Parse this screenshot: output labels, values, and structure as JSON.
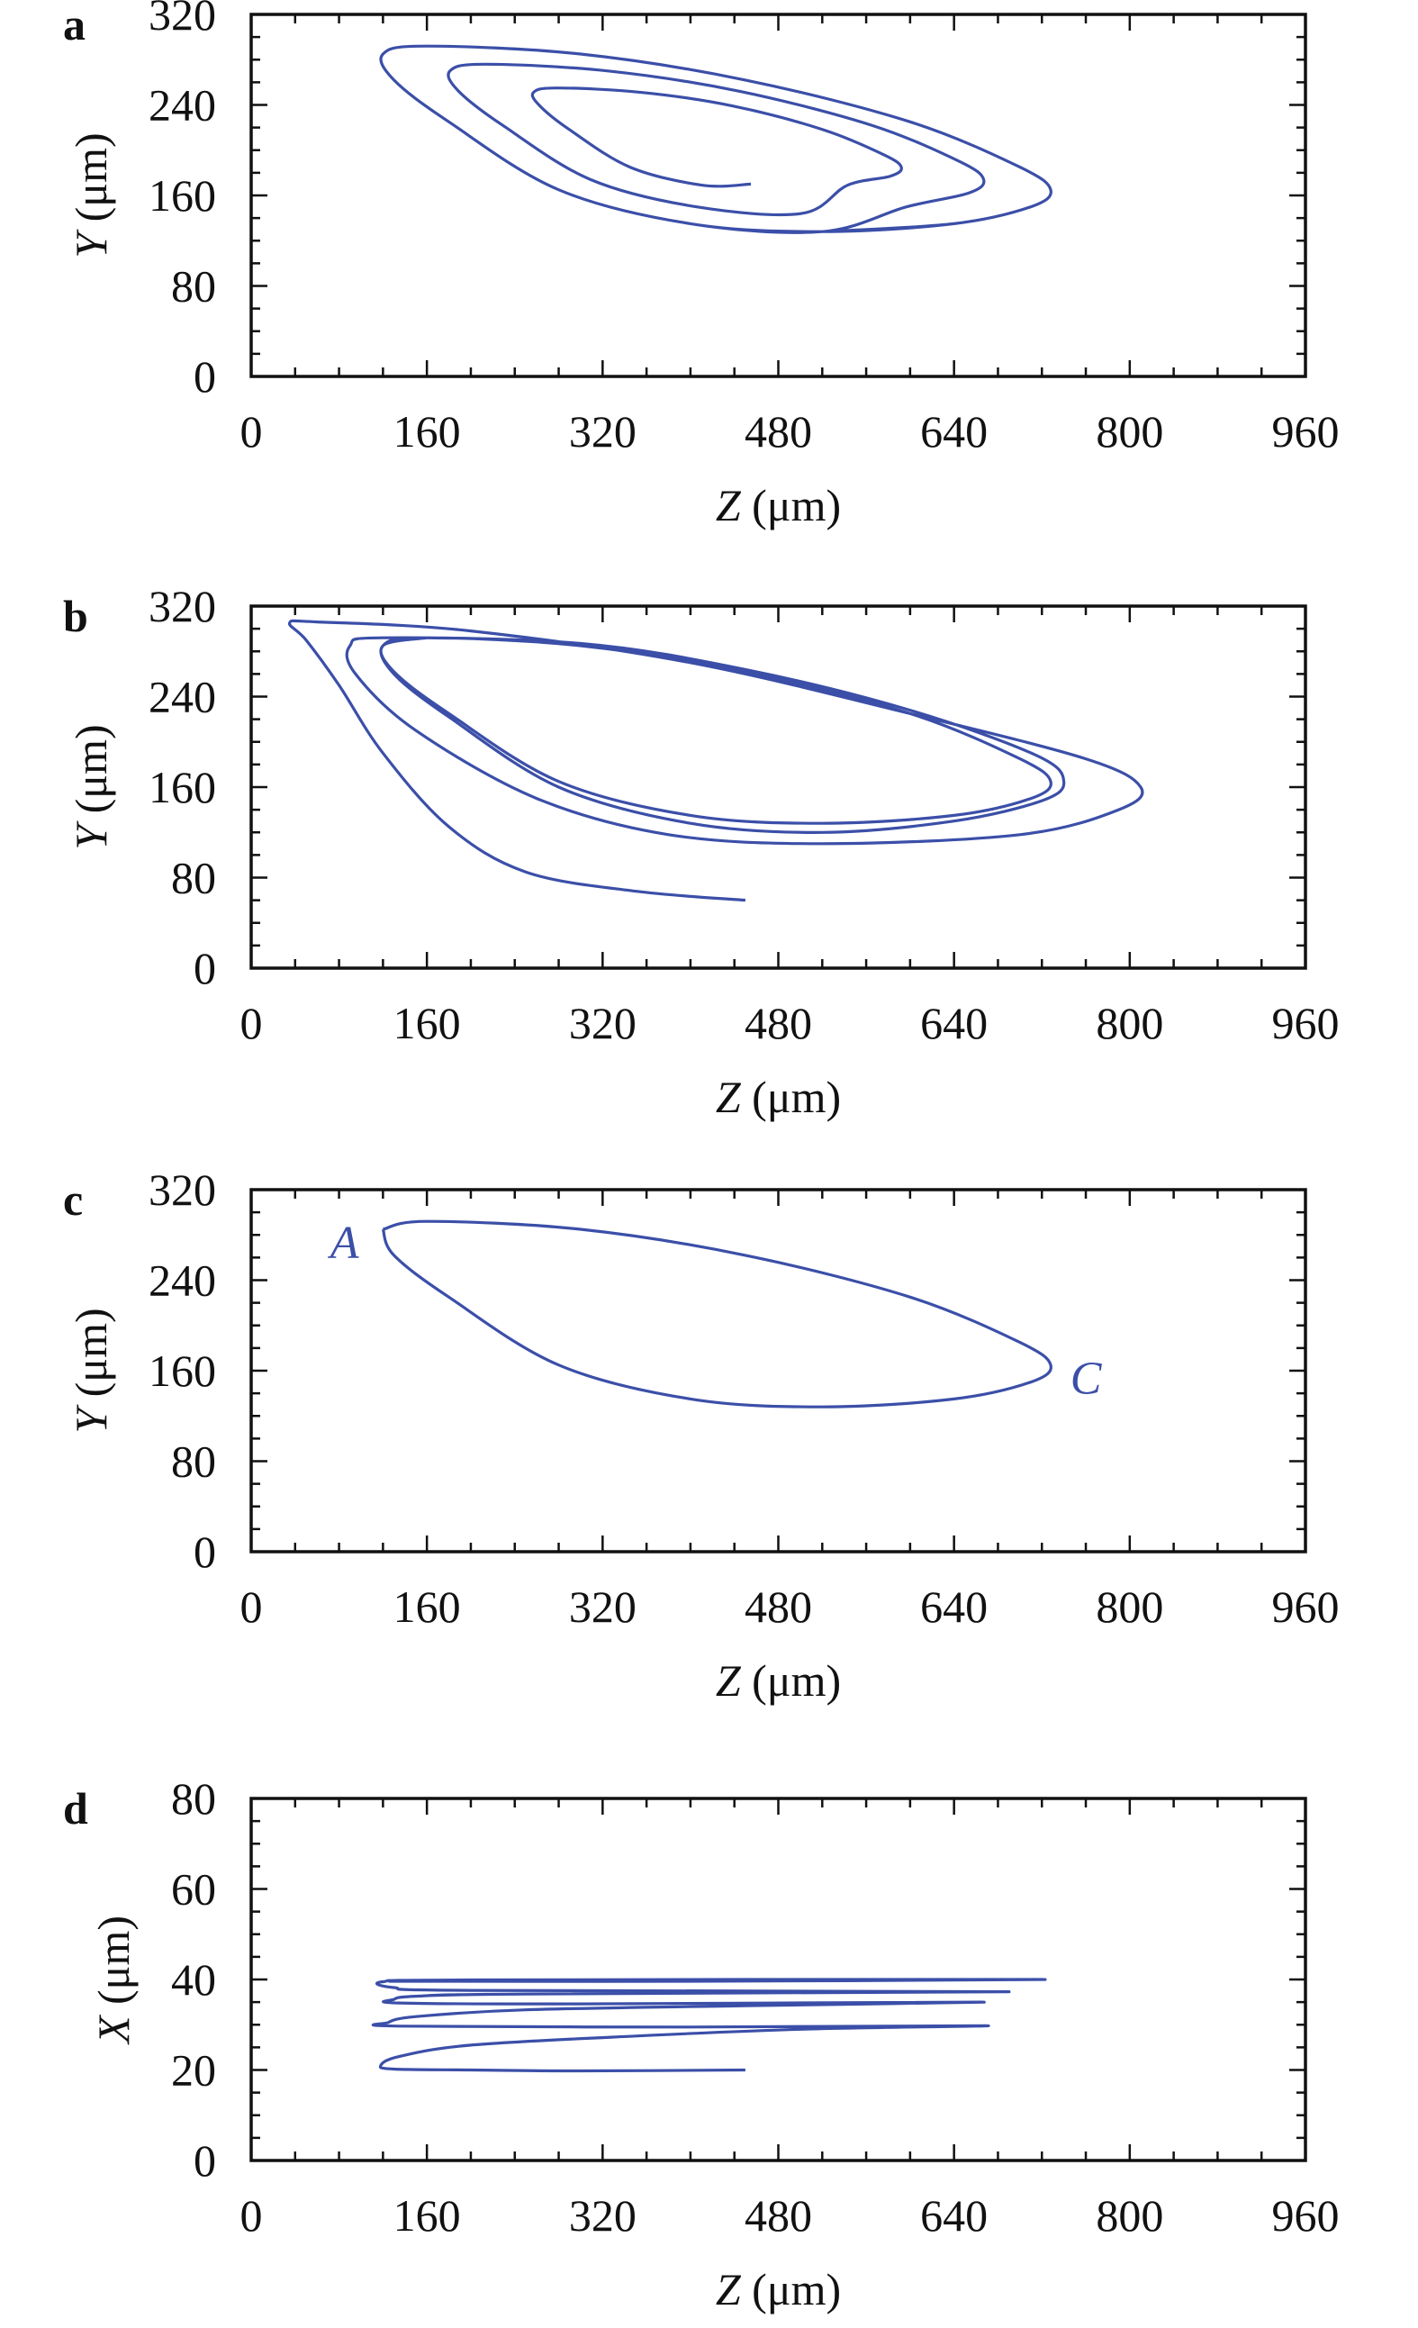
{
  "colors": {
    "trajectory": "#3b4fa8",
    "axis": "#111111",
    "annotation": "#3b4fa8"
  },
  "chart_data": [
    {
      "panel": "a",
      "type": "line",
      "xlabel": "Z (μm)",
      "ylabel": "Y (μm)",
      "xlim": [
        0,
        960
      ],
      "ylim": [
        0,
        320
      ],
      "xticks": [
        0,
        160,
        320,
        480,
        640,
        800,
        960
      ],
      "yticks": [
        0,
        80,
        160,
        240,
        320
      ],
      "points": [
        [
          455,
          170
        ],
        [
          411,
          169
        ],
        [
          345,
          185
        ],
        [
          290,
          218
        ],
        [
          263,
          239
        ],
        [
          257,
          251
        ],
        [
          279,
          255
        ],
        [
          356,
          251
        ],
        [
          439,
          239
        ],
        [
          521,
          218
        ],
        [
          576,
          196
        ],
        [
          592,
          185
        ],
        [
          582,
          177
        ],
        [
          543,
          169
        ],
        [
          501,
          144
        ],
        [
          405,
          150
        ],
        [
          309,
          174
        ],
        [
          229,
          222
        ],
        [
          189,
          252
        ],
        [
          181,
          270
        ],
        [
          213,
          276
        ],
        [
          325,
          270
        ],
        [
          445,
          252
        ],
        [
          565,
          222
        ],
        [
          645,
          190
        ],
        [
          667,
          174
        ],
        [
          653,
          162
        ],
        [
          597,
          150
        ],
        [
          520,
          128
        ],
        [
          400,
          135
        ],
        [
          280,
          165
        ],
        [
          180,
          225
        ],
        [
          130,
          262
        ],
        [
          120,
          285
        ],
        [
          160,
          292
        ],
        [
          300,
          285
        ],
        [
          450,
          262
        ],
        [
          600,
          225
        ],
        [
          700,
          185
        ],
        [
          728,
          165
        ],
        [
          710,
          150
        ],
        [
          640,
          135
        ],
        [
          520,
          128
        ],
        [
          400,
          135
        ],
        [
          280,
          165
        ],
        [
          180,
          225
        ],
        [
          130,
          262
        ],
        [
          120,
          285
        ],
        [
          160,
          292
        ],
        [
          300,
          285
        ],
        [
          450,
          262
        ],
        [
          600,
          225
        ],
        [
          700,
          185
        ],
        [
          728,
          165
        ],
        [
          710,
          150
        ],
        [
          640,
          135
        ],
        [
          520,
          128
        ]
      ]
    },
    {
      "panel": "b",
      "type": "line",
      "xlabel": "Z (μm)",
      "ylabel": "Y (μm)",
      "xlim": [
        0,
        960
      ],
      "ylim": [
        0,
        320
      ],
      "xticks": [
        0,
        160,
        320,
        480,
        640,
        800,
        960
      ],
      "yticks": [
        0,
        80,
        160,
        240,
        320
      ],
      "points": [
        [
          450,
          60
        ],
        [
          350,
          68
        ],
        [
          250,
          85
        ],
        [
          180,
          125
        ],
        [
          120,
          190
        ],
        [
          80,
          250
        ],
        [
          50,
          290
        ],
        [
          35,
          305
        ],
        [
          60,
          306
        ],
        [
          200,
          298
        ],
        [
          400,
          270
        ],
        [
          600,
          225
        ],
        [
          760,
          185
        ],
        [
          810,
          160
        ],
        [
          790,
          140
        ],
        [
          700,
          118
        ],
        [
          520,
          110
        ],
        [
          380,
          118
        ],
        [
          260,
          150
        ],
        [
          150,
          210
        ],
        [
          95,
          260
        ],
        [
          90,
          285
        ],
        [
          120,
          292
        ],
        [
          300,
          287
        ],
        [
          450,
          264
        ],
        [
          600,
          228
        ],
        [
          715,
          188
        ],
        [
          740,
          165
        ],
        [
          720,
          148
        ],
        [
          640,
          130
        ],
        [
          520,
          120
        ],
        [
          400,
          128
        ],
        [
          280,
          160
        ],
        [
          180,
          222
        ],
        [
          130,
          260
        ],
        [
          120,
          285
        ],
        [
          160,
          292
        ],
        [
          300,
          285
        ],
        [
          450,
          262
        ],
        [
          600,
          225
        ],
        [
          700,
          185
        ],
        [
          728,
          165
        ],
        [
          710,
          150
        ],
        [
          640,
          135
        ],
        [
          520,
          128
        ],
        [
          400,
          135
        ],
        [
          280,
          165
        ],
        [
          180,
          225
        ],
        [
          130,
          262
        ],
        [
          120,
          285
        ],
        [
          160,
          292
        ]
      ]
    },
    {
      "panel": "c",
      "type": "line",
      "xlabel": "Z (μm)",
      "ylabel": "Y (μm)",
      "xlim": [
        0,
        960
      ],
      "ylim": [
        0,
        320
      ],
      "xticks": [
        0,
        160,
        320,
        480,
        640,
        800,
        960
      ],
      "yticks": [
        0,
        80,
        160,
        240,
        320
      ],
      "points": [
        [
          120,
          285
        ],
        [
          160,
          292
        ],
        [
          300,
          285
        ],
        [
          450,
          262
        ],
        [
          600,
          225
        ],
        [
          700,
          185
        ],
        [
          728,
          165
        ],
        [
          710,
          150
        ],
        [
          640,
          135
        ],
        [
          520,
          128
        ],
        [
          400,
          135
        ],
        [
          280,
          165
        ],
        [
          180,
          225
        ],
        [
          130,
          262
        ],
        [
          120,
          285
        ]
      ],
      "annotations": [
        {
          "text": "A",
          "x": 85,
          "y": 274
        },
        {
          "text": "C",
          "x": 760,
          "y": 154
        }
      ]
    },
    {
      "panel": "d",
      "type": "line",
      "xlabel": "Z (μm)",
      "ylabel": "X (μm)",
      "xlim": [
        0,
        960
      ],
      "ylim": [
        0,
        80
      ],
      "xticks": [
        0,
        160,
        320,
        480,
        640,
        800,
        960
      ],
      "yticks": [
        0,
        20,
        40,
        60,
        80
      ],
      "points": [
        [
          450,
          20
        ],
        [
          300,
          19.8
        ],
        [
          200,
          20
        ],
        [
          130,
          20.2
        ],
        [
          118,
          21
        ],
        [
          135,
          23
        ],
        [
          200,
          25.5
        ],
        [
          350,
          27.5
        ],
        [
          500,
          29
        ],
        [
          670,
          29.8
        ],
        [
          400,
          29.5
        ],
        [
          135,
          29.7
        ],
        [
          125,
          30.5
        ],
        [
          150,
          31.8
        ],
        [
          250,
          33.3
        ],
        [
          450,
          34.2
        ],
        [
          665,
          35
        ],
        [
          300,
          34.6
        ],
        [
          135,
          34.8
        ],
        [
          130,
          35.6
        ],
        [
          150,
          36.3
        ],
        [
          250,
          36.8
        ],
        [
          690,
          37.3
        ],
        [
          200,
          37.6
        ],
        [
          130,
          38.2
        ],
        [
          120,
          39.5
        ],
        [
          200,
          39.9
        ],
        [
          720,
          40
        ],
        [
          400,
          39.6
        ],
        [
          125,
          39.6
        ]
      ]
    }
  ]
}
